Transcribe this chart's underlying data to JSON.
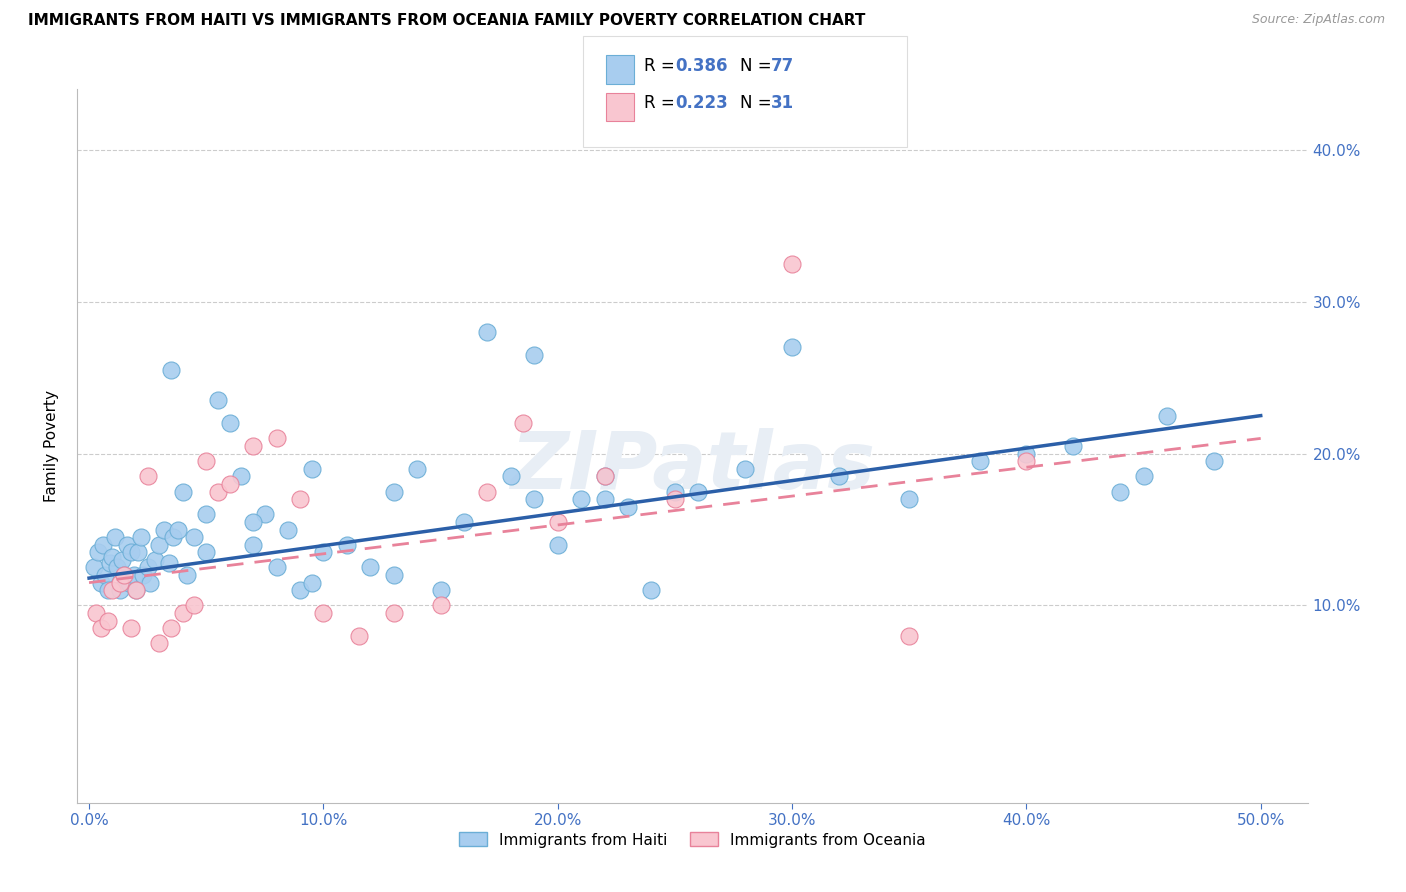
{
  "title": "IMMIGRANTS FROM HAITI VS IMMIGRANTS FROM OCEANIA FAMILY POVERTY CORRELATION CHART",
  "source": "Source: ZipAtlas.com",
  "xlabel_values": [
    0,
    10,
    20,
    30,
    40,
    50
  ],
  "ylabel": "Family Poverty",
  "ylabel_values": [
    10,
    20,
    30,
    40
  ],
  "xlim": [
    -0.5,
    52
  ],
  "ylim": [
    -3,
    44
  ],
  "watermark": "ZIPatlas",
  "series": [
    {
      "label": "Immigrants from Haiti",
      "color": "#A8CDEF",
      "edge_color": "#6BAED6",
      "R": 0.386,
      "N": 77,
      "x": [
        0.2,
        0.4,
        0.5,
        0.6,
        0.7,
        0.8,
        0.9,
        1.0,
        1.1,
        1.2,
        1.3,
        1.4,
        1.5,
        1.6,
        1.7,
        1.8,
        1.9,
        2.0,
        2.1,
        2.2,
        2.3,
        2.5,
        2.6,
        2.8,
        3.0,
        3.2,
        3.4,
        3.6,
        3.8,
        4.0,
        4.2,
        4.5,
        5.0,
        5.5,
        6.0,
        6.5,
        7.0,
        7.5,
        8.0,
        8.5,
        9.0,
        9.5,
        10.0,
        11.0,
        12.0,
        13.0,
        14.0,
        15.0,
        16.0,
        17.0,
        18.0,
        19.0,
        20.0,
        21.0,
        22.0,
        23.0,
        24.0,
        25.0,
        26.0,
        28.0,
        30.0,
        32.0,
        35.0,
        38.0,
        40.0,
        42.0,
        44.0,
        45.0,
        46.0,
        48.0,
        3.5,
        5.0,
        7.0,
        9.5,
        13.0,
        19.0,
        22.0
      ],
      "y": [
        12.5,
        13.5,
        11.5,
        14.0,
        12.0,
        11.0,
        12.8,
        13.2,
        14.5,
        12.5,
        11.0,
        13.0,
        12.0,
        14.0,
        11.5,
        13.5,
        12.0,
        11.0,
        13.5,
        14.5,
        12.0,
        12.5,
        11.5,
        13.0,
        14.0,
        15.0,
        12.8,
        14.5,
        15.0,
        17.5,
        12.0,
        14.5,
        13.5,
        23.5,
        22.0,
        18.5,
        14.0,
        16.0,
        12.5,
        15.0,
        11.0,
        11.5,
        13.5,
        14.0,
        12.5,
        17.5,
        19.0,
        11.0,
        15.5,
        28.0,
        18.5,
        26.5,
        14.0,
        17.0,
        18.5,
        16.5,
        11.0,
        17.5,
        17.5,
        19.0,
        27.0,
        18.5,
        17.0,
        19.5,
        20.0,
        20.5,
        17.5,
        18.5,
        22.5,
        19.5,
        25.5,
        16.0,
        15.5,
        19.0,
        12.0,
        17.0,
        17.0
      ],
      "trend_x": [
        0,
        50
      ],
      "trend_y": [
        11.8,
        22.5
      ]
    },
    {
      "label": "Immigrants from Oceania",
      "color": "#F9C6D0",
      "edge_color": "#E8829A",
      "R": 0.223,
      "N": 31,
      "x": [
        0.3,
        0.5,
        0.8,
        1.0,
        1.3,
        1.5,
        1.8,
        2.0,
        2.5,
        3.0,
        3.5,
        4.0,
        4.5,
        5.0,
        5.5,
        6.0,
        7.0,
        8.0,
        9.0,
        10.0,
        11.5,
        13.0,
        15.0,
        17.0,
        18.5,
        20.0,
        22.0,
        25.0,
        30.0,
        35.0,
        40.0
      ],
      "y": [
        9.5,
        8.5,
        9.0,
        11.0,
        11.5,
        12.0,
        8.5,
        11.0,
        18.5,
        7.5,
        8.5,
        9.5,
        10.0,
        19.5,
        17.5,
        18.0,
        20.5,
        21.0,
        17.0,
        9.5,
        8.0,
        9.5,
        10.0,
        17.5,
        22.0,
        15.5,
        18.5,
        17.0,
        32.5,
        8.0,
        19.5
      ],
      "trend_x": [
        0,
        50
      ],
      "trend_y": [
        11.5,
        21.0
      ]
    }
  ],
  "title_fontsize": 11,
  "tick_color": "#4472C4",
  "grid_color": "#CCCCCC",
  "background_color": "#FFFFFF"
}
